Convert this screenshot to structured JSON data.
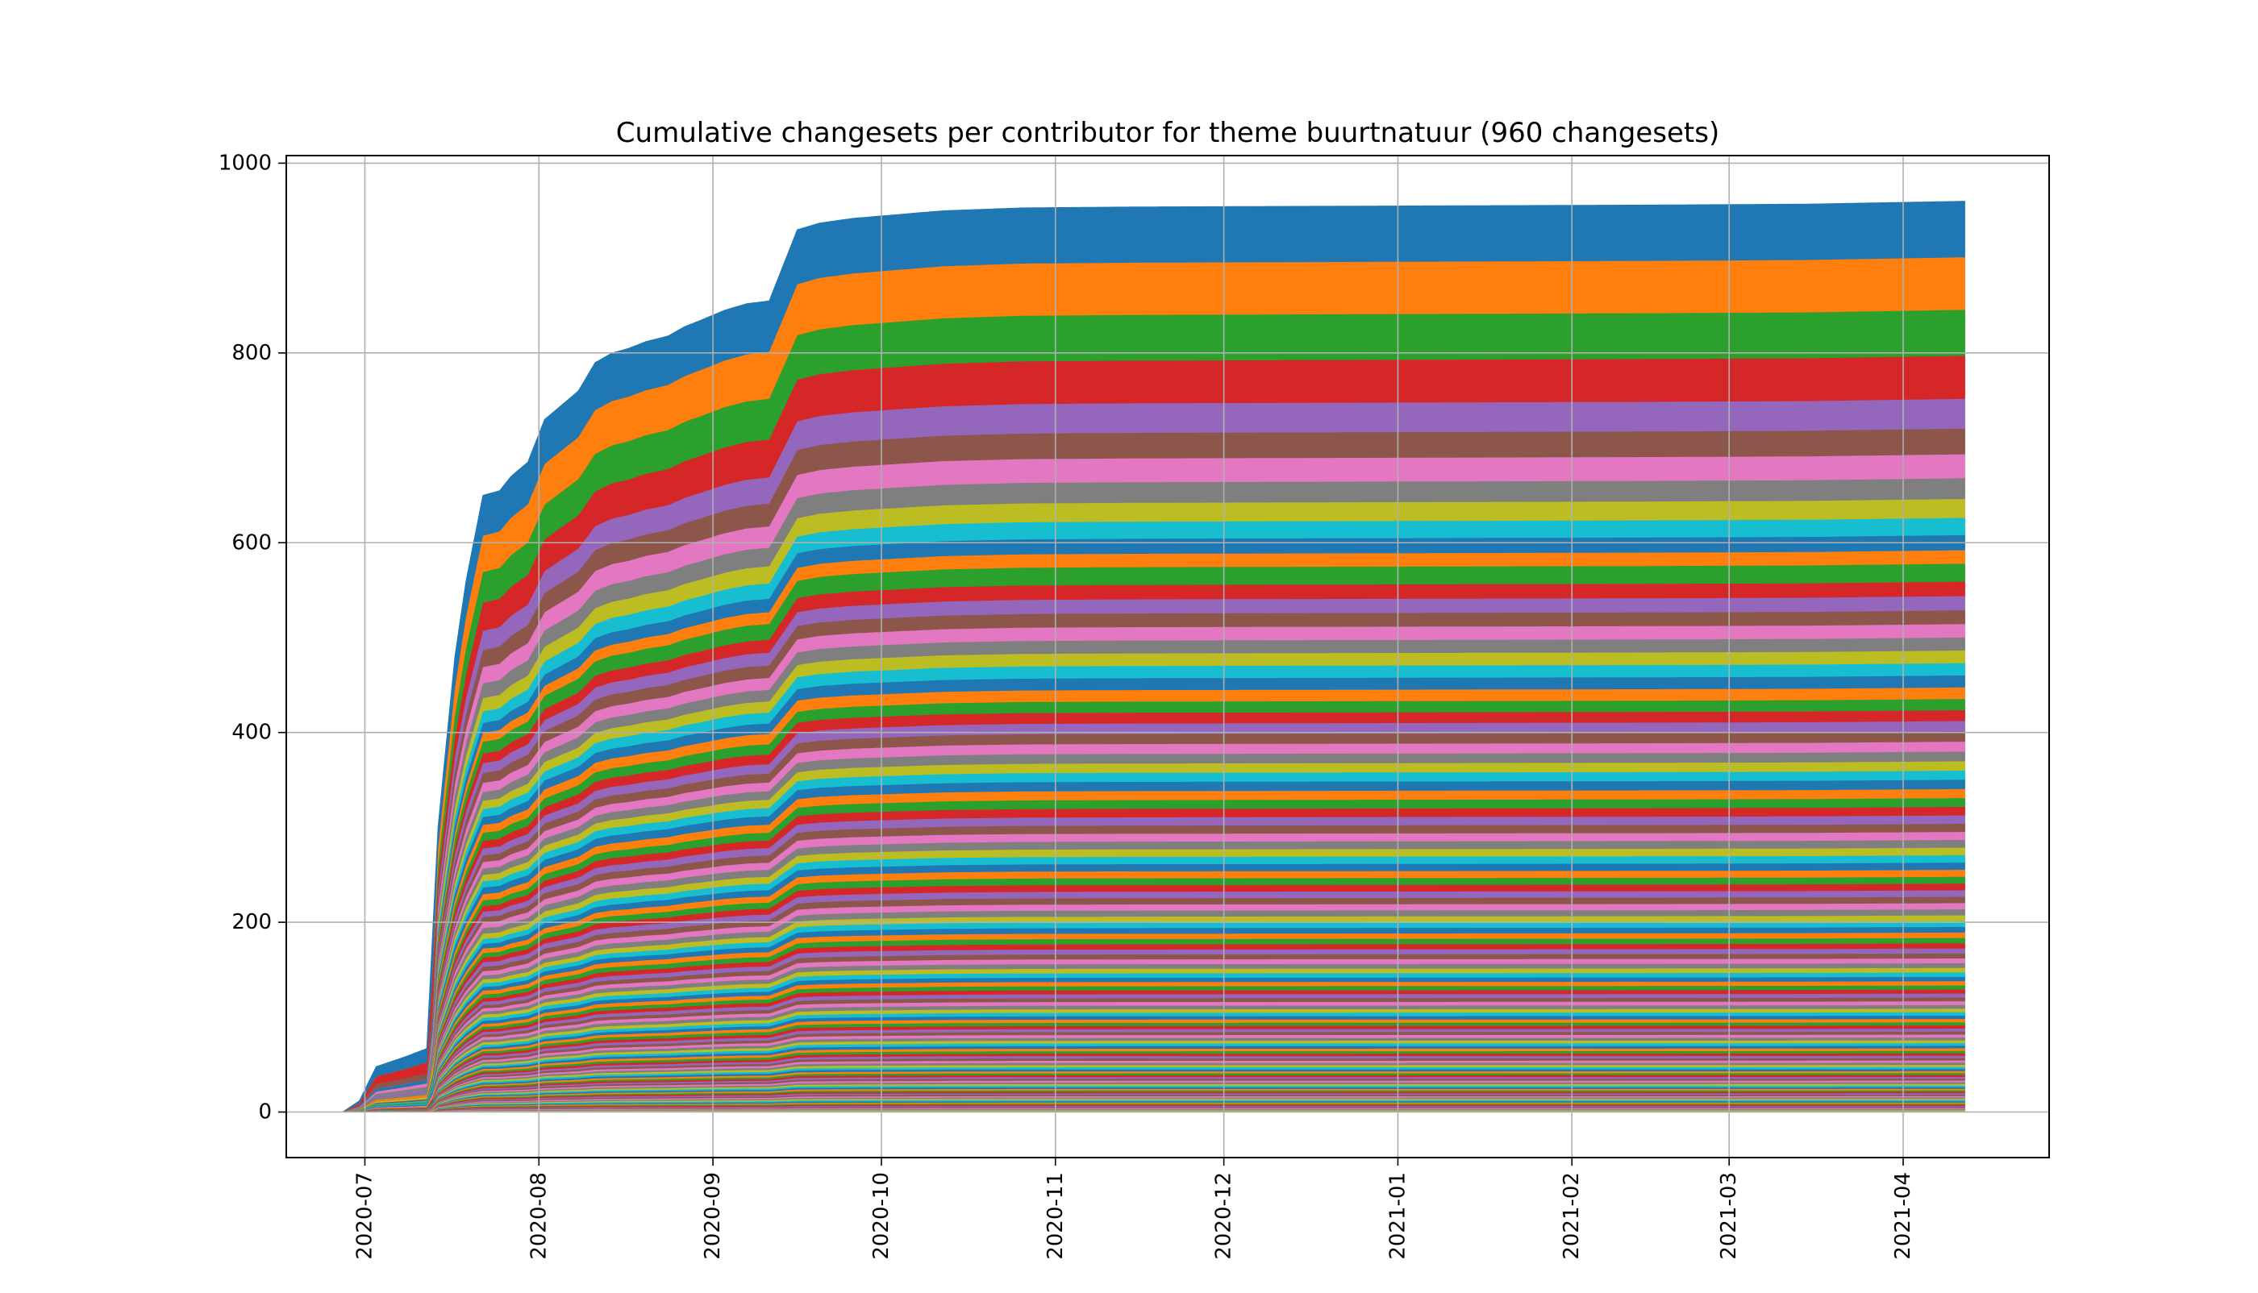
{
  "chart_data": {
    "type": "area",
    "stacked": true,
    "title": "Cumulative changesets per contributor for theme buurtnatuur (960 changesets)",
    "xlabel": "",
    "ylabel": "",
    "x_tick_labels": [
      "2020-07",
      "2020-08",
      "2020-09",
      "2020-10",
      "2020-11",
      "2020-12",
      "2021-01",
      "2021-02",
      "2021-03",
      "2021-04"
    ],
    "y_tick_labels": [
      "0",
      "200",
      "400",
      "600",
      "800",
      "1000"
    ],
    "y_ticks": [
      0,
      200,
      400,
      600,
      800,
      1000
    ],
    "xlim": [
      "2020-06-17",
      "2021-04-27"
    ],
    "ylim": [
      -48,
      1008
    ],
    "x_start": "2020-06-27",
    "x_end": "2021-04-12",
    "total": 960,
    "grid": true,
    "legend": "none",
    "total_curve": [
      [
        "2020-06-27",
        0
      ],
      [
        "2020-06-30",
        12
      ],
      [
        "2020-07-03",
        48
      ],
      [
        "2020-07-08",
        58
      ],
      [
        "2020-07-12",
        67
      ],
      [
        "2020-07-14",
        300
      ],
      [
        "2020-07-17",
        480
      ],
      [
        "2020-07-19",
        560
      ],
      [
        "2020-07-22",
        650
      ],
      [
        "2020-07-25",
        655
      ],
      [
        "2020-07-27",
        670
      ],
      [
        "2020-07-30",
        685
      ],
      [
        "2020-08-02",
        730
      ],
      [
        "2020-08-05",
        745
      ],
      [
        "2020-08-08",
        760
      ],
      [
        "2020-08-11",
        790
      ],
      [
        "2020-08-14",
        800
      ],
      [
        "2020-08-17",
        805
      ],
      [
        "2020-08-20",
        812
      ],
      [
        "2020-08-24",
        818
      ],
      [
        "2020-08-27",
        828
      ],
      [
        "2020-08-30",
        835
      ],
      [
        "2020-09-03",
        845
      ],
      [
        "2020-09-07",
        852
      ],
      [
        "2020-09-11",
        855
      ],
      [
        "2020-09-13",
        885
      ],
      [
        "2020-09-16",
        930
      ],
      [
        "2020-09-20",
        937
      ],
      [
        "2020-09-26",
        942
      ],
      [
        "2020-10-04",
        946
      ],
      [
        "2020-10-12",
        950
      ],
      [
        "2020-10-26",
        953
      ],
      [
        "2020-11-15",
        954
      ],
      [
        "2020-12-31",
        955
      ],
      [
        "2021-02-15",
        956
      ],
      [
        "2021-03-15",
        957
      ],
      [
        "2021-04-12",
        960
      ]
    ],
    "series_count": 120,
    "series_top_shares": [
      0.0614,
      0.0577,
      0.0505,
      0.0472,
      0.0327,
      0.0282,
      0.0263,
      0.0227,
      0.0208,
      0.0189,
      0.0166,
      0.0148,
      0.0197,
      0.0159,
      0.0156,
      0.0151,
      0.0147,
      0.0143,
      0.0139,
      0.0135,
      0.0131,
      0.0127,
      0.0123,
      0.0119,
      0.0115,
      0.0112,
      0.0109,
      0.0106,
      0.0103,
      0.01
    ],
    "series_colors": [
      "#1f77b4",
      "#ff7f0e",
      "#2ca02c",
      "#d62728",
      "#9467bd",
      "#8c564b",
      "#e377c2",
      "#7f7f7f",
      "#bcbd22",
      "#17becf"
    ]
  }
}
